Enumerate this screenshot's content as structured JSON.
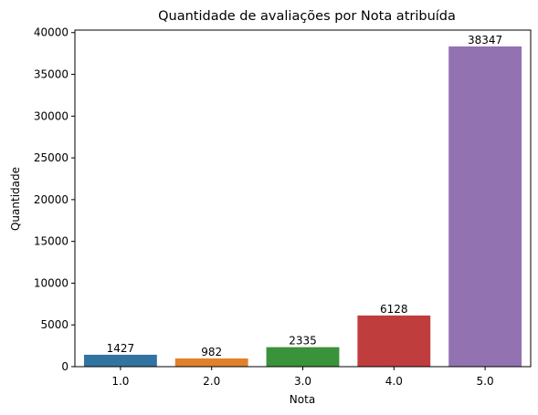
{
  "chart_data": {
    "type": "bar",
    "title": "Quantidade de avaliações por Nota atribuída",
    "xlabel": "Nota",
    "ylabel": "Quantidade",
    "categories": [
      "1.0",
      "2.0",
      "3.0",
      "4.0",
      "5.0"
    ],
    "values": [
      1427,
      982,
      2335,
      6128,
      38347
    ],
    "data_labels": [
      "1427",
      "982",
      "2335",
      "6128",
      "38347"
    ],
    "colors": [
      "#3274a1",
      "#e1812c",
      "#3a923a",
      "#c03d3e",
      "#9372b2"
    ],
    "ylim": [
      0,
      40300
    ],
    "yticks": [
      0,
      5000,
      10000,
      15000,
      20000,
      25000,
      30000,
      35000,
      40000
    ],
    "grid": false,
    "legend": "none"
  }
}
